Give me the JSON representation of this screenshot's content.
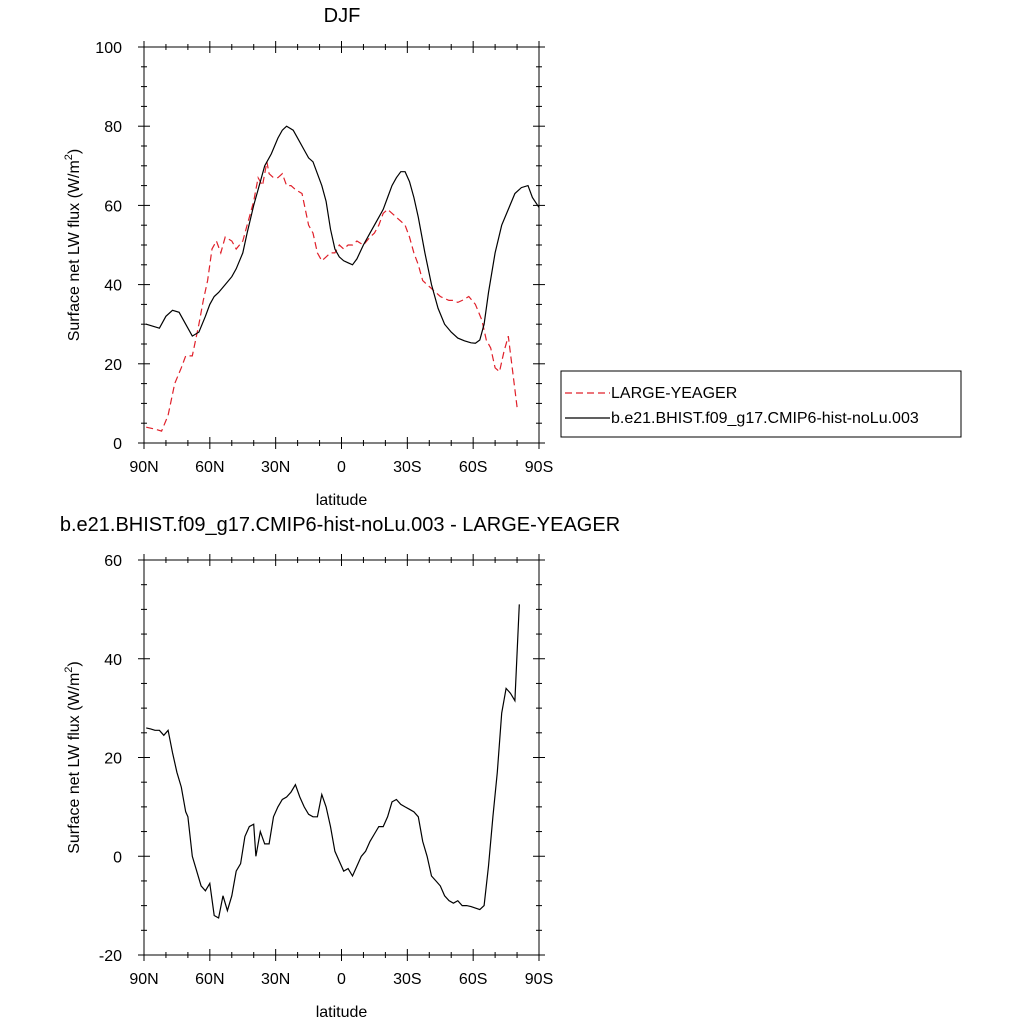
{
  "chart_data": [
    {
      "type": "line",
      "title": "DJF",
      "xlabel": "latitude",
      "ylabel": "Surface net LW flux (W/m²)",
      "ylabel_main": "Surface net LW flux (W/m",
      "ylabel_sup": "2",
      "ylabel_close": ")",
      "xlim": [
        90,
        -90
      ],
      "ylim": [
        0,
        100
      ],
      "xticks": [
        90,
        60,
        30,
        0,
        -30,
        -60,
        -90
      ],
      "xticklabels": [
        "90N",
        "60N",
        "30N",
        "0",
        "30S",
        "60S",
        "90S"
      ],
      "yticks": [
        0,
        20,
        40,
        60,
        80,
        100
      ],
      "yticklabels": [
        "0",
        "20",
        "40",
        "60",
        "80",
        "100"
      ],
      "legend_position": "right",
      "series": [
        {
          "name": "LARGE-YEAGER",
          "color": "#e0202a",
          "style": "dashed",
          "x": [
            89,
            85,
            82,
            79,
            76,
            73,
            71,
            68,
            65,
            63,
            61,
            59,
            57,
            55,
            53,
            50,
            48,
            45,
            43,
            40,
            38,
            36,
            34,
            33,
            31,
            29,
            27,
            25,
            23,
            21,
            18,
            15,
            13,
            11,
            9,
            7,
            5,
            3,
            1,
            -1,
            -3,
            -5,
            -7,
            -10,
            -13,
            -15,
            -17,
            -19,
            -21,
            -23,
            -25,
            -27,
            -29,
            -31,
            -33,
            -35,
            -37,
            -39,
            -41,
            -43,
            -45,
            -47,
            -49,
            -51,
            -53,
            -55,
            -58,
            -61,
            -64,
            -66,
            -68,
            -70,
            -72,
            -74,
            -76,
            -78,
            -80
          ],
          "y": [
            4,
            3.5,
            3,
            7,
            15,
            19,
            22,
            22,
            30,
            36,
            41,
            49,
            51,
            48,
            52,
            51,
            49,
            51,
            55,
            61,
            67,
            65,
            71,
            68,
            67,
            67,
            68,
            65,
            65,
            64,
            63,
            55,
            53,
            48,
            46,
            47,
            48,
            48,
            50,
            49,
            50,
            50,
            51,
            50,
            52,
            53,
            55,
            58,
            59,
            58,
            57,
            56,
            55,
            52,
            48,
            45,
            41,
            40,
            39,
            38,
            37,
            36.5,
            36,
            36,
            35.5,
            36,
            37,
            35,
            31,
            26,
            24,
            19,
            18,
            23,
            27,
            18,
            9
          ]
        },
        {
          "name": "b.e21.BHIST.f09_g17.CMIP6-hist-noLu.003",
          "color": "#000000",
          "style": "solid",
          "x": [
            89,
            86,
            83,
            80,
            77,
            74,
            71,
            68,
            65,
            62,
            60,
            58,
            56,
            53,
            50,
            48,
            45,
            43,
            40,
            38,
            35,
            32,
            29,
            27,
            25,
            22,
            20,
            17,
            15,
            13,
            11,
            9,
            7,
            5,
            3,
            1,
            -1,
            -3,
            -5,
            -7,
            -10,
            -13,
            -15,
            -17,
            -19,
            -21,
            -23,
            -25,
            -27,
            -29,
            -31,
            -33,
            -35,
            -38,
            -41,
            -44,
            -47,
            -50,
            -53,
            -56,
            -59,
            -61,
            -63,
            -65,
            -67,
            -70,
            -73,
            -76,
            -79,
            -82,
            -85,
            -87,
            -90
          ],
          "y": [
            30,
            29.5,
            29,
            32,
            33.5,
            33,
            30,
            27,
            28,
            32,
            35,
            37,
            38,
            40,
            42,
            44,
            48,
            53,
            60,
            64,
            70,
            73,
            77,
            79,
            80,
            79,
            77,
            74,
            72,
            71,
            68,
            65,
            61,
            54,
            49,
            47,
            46,
            45.5,
            45,
            46.5,
            50,
            53,
            55,
            57,
            59,
            62,
            65,
            67,
            68.5,
            68.5,
            66,
            62,
            57,
            48,
            40,
            34,
            30,
            28,
            26.5,
            25.8,
            25.3,
            25.2,
            26,
            30,
            38,
            48,
            55,
            59,
            63,
            64.5,
            65,
            62,
            59.5
          ]
        }
      ]
    },
    {
      "type": "line",
      "title": "b.e21.BHIST.f09_g17.CMIP6-hist-noLu.003 - LARGE-YEAGER",
      "xlabel": "latitude",
      "ylabel": "Surface net LW flux (W/m²)",
      "ylabel_main": "Surface net LW flux (W/m",
      "ylabel_sup": "2",
      "ylabel_close": ")",
      "xlim": [
        90,
        -90
      ],
      "ylim": [
        -20,
        60
      ],
      "xticks": [
        90,
        60,
        30,
        0,
        -30,
        -60,
        -90
      ],
      "xticklabels": [
        "90N",
        "60N",
        "30N",
        "0",
        "30S",
        "60S",
        "90S"
      ],
      "yticks": [
        -20,
        0,
        20,
        40,
        60
      ],
      "yticklabels": [
        "-20",
        "0",
        "20",
        "40",
        "60"
      ],
      "series": [
        {
          "color": "#000000",
          "style": "solid",
          "x": [
            89,
            87,
            85,
            83,
            81,
            79,
            77,
            75,
            73,
            71,
            70,
            68,
            66,
            64,
            62,
            60,
            58,
            56,
            54,
            52,
            50,
            48,
            46,
            44,
            42,
            40,
            39,
            37,
            35,
            33,
            31,
            29,
            27,
            25,
            23,
            21,
            19,
            17,
            15,
            13,
            11,
            9,
            7,
            5,
            3,
            1,
            -1,
            -3,
            -5,
            -7,
            -9,
            -11,
            -13,
            -15,
            -17,
            -19,
            -21,
            -23,
            -25,
            -27,
            -29,
            -31,
            -33,
            -35,
            -37,
            -39,
            -41,
            -43,
            -45,
            -47,
            -49,
            -51,
            -53,
            -55,
            -57,
            -59,
            -61,
            -63,
            -65,
            -67,
            -69,
            -71,
            -73,
            -75,
            -77,
            -79,
            -81
          ],
          "y": [
            26,
            25.8,
            25.5,
            25.5,
            24.5,
            25.5,
            21,
            17,
            14,
            9,
            8,
            0,
            -3,
            -6,
            -7,
            -5.5,
            -12,
            -12.5,
            -8,
            -11,
            -8,
            -3,
            -1.5,
            4,
            6,
            6.5,
            0,
            5,
            2.5,
            2.5,
            8,
            10,
            11.5,
            12,
            13,
            14.5,
            12,
            10,
            8.5,
            8,
            8,
            12.5,
            10,
            6,
            1,
            -1,
            -3,
            -2.5,
            -4,
            -2,
            0,
            1,
            3,
            4.5,
            6,
            6,
            8,
            11,
            11.5,
            10.5,
            10,
            9.5,
            9,
            8,
            3,
            0,
            -4,
            -5,
            -6,
            -8,
            -9,
            -9.5,
            -9,
            -10,
            -10,
            -10.2,
            -10.5,
            -10.8,
            -10,
            -2,
            8,
            17,
            29,
            34,
            33,
            31.5,
            51
          ]
        }
      ]
    }
  ]
}
